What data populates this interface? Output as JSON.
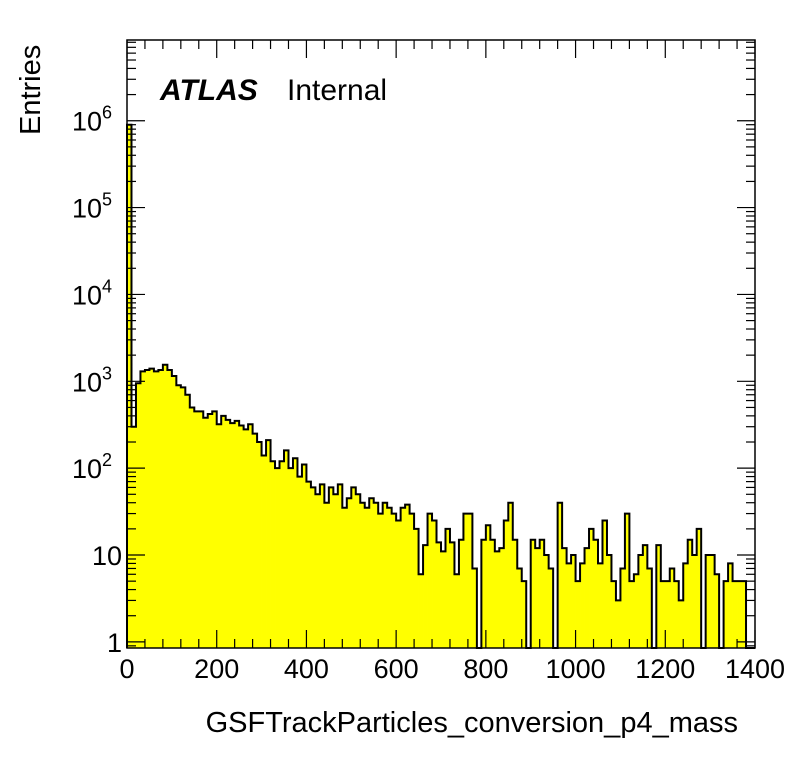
{
  "chart_data": {
    "type": "bar",
    "title": "",
    "xlabel": "GSFTrackParticles_conversion_p4_mass",
    "ylabel": "Entries",
    "xlim": [
      0,
      1400
    ],
    "ylim": [
      0.85,
      8500000
    ],
    "yscale": "log",
    "grid": false,
    "bin_width": 10,
    "fill_color": "#ffff00",
    "line_color": "#000000",
    "label_main": "ATLAS",
    "label_sub": "Internal",
    "x_ticks": [
      "0",
      "200",
      "400",
      "600",
      "800",
      "1000",
      "1200",
      "1400"
    ],
    "y_ticks": [
      {
        "value": 1,
        "base": "1",
        "exp": ""
      },
      {
        "value": 10,
        "base": "10",
        "exp": ""
      },
      {
        "value": 100,
        "base": "10",
        "exp": "2"
      },
      {
        "value": 1000,
        "base": "10",
        "exp": "3"
      },
      {
        "value": 10000,
        "base": "10",
        "exp": "4"
      },
      {
        "value": 100000,
        "base": "10",
        "exp": "5"
      },
      {
        "value": 1000000,
        "base": "10",
        "exp": "6"
      }
    ],
    "values": [
      900000,
      300,
      950,
      1300,
      1350,
      1400,
      1300,
      1350,
      1550,
      1350,
      1150,
      900,
      850,
      700,
      500,
      450,
      450,
      380,
      420,
      450,
      320,
      400,
      360,
      330,
      350,
      310,
      280,
      320,
      250,
      200,
      140,
      210,
      120,
      100,
      120,
      160,
      100,
      130,
      80,
      110,
      70,
      60,
      50,
      65,
      40,
      60,
      50,
      65,
      35,
      45,
      60,
      50,
      40,
      35,
      45,
      40,
      30,
      40,
      35,
      30,
      25,
      35,
      38,
      30,
      20,
      6,
      13,
      30,
      25,
      14,
      11,
      20,
      14,
      6,
      15,
      30,
      30,
      7,
      0,
      15,
      22,
      15,
      11,
      12,
      25,
      40,
      15,
      7,
      5,
      0,
      15,
      12,
      15,
      10,
      7,
      0,
      40,
      12,
      8,
      10,
      5,
      8,
      12,
      20,
      15,
      8,
      25,
      10,
      5,
      3,
      7,
      30,
      5,
      6,
      10,
      13,
      7,
      0,
      13,
      5,
      5,
      7,
      5,
      3,
      8,
      15,
      10,
      20,
      0,
      10,
      10,
      6,
      0,
      5,
      8,
      5,
      5,
      5,
      0,
      0
    ]
  }
}
